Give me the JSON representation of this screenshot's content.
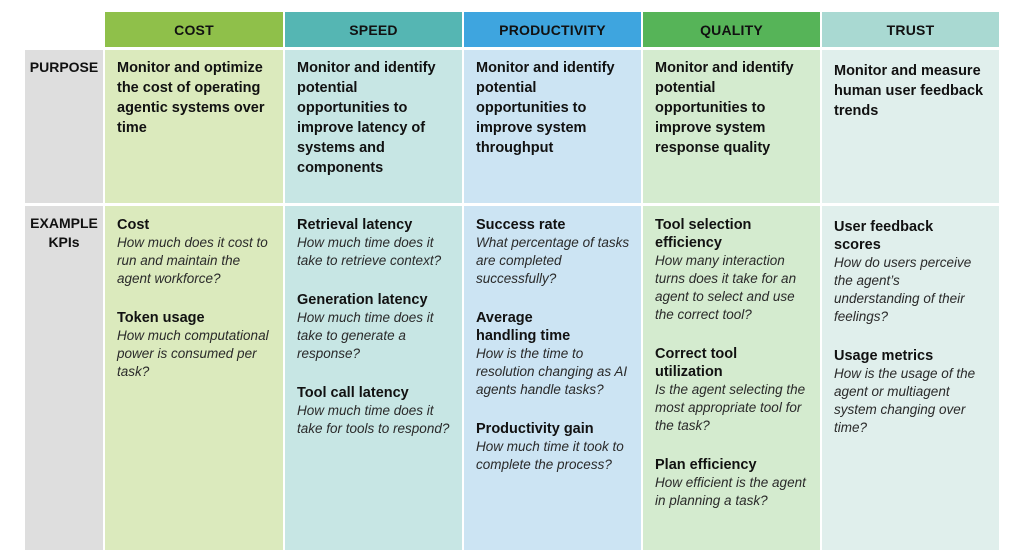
{
  "columns": [
    {
      "id": "cost",
      "header": "COST",
      "header_color": "#8fc04a",
      "cell_color": "#dbeabd"
    },
    {
      "id": "speed",
      "header": "SPEED",
      "header_color": "#55b6b3",
      "cell_color": "#c7e6e4"
    },
    {
      "id": "productivity",
      "header": "PRODUCTIVITY",
      "header_color": "#3ea5df",
      "cell_color": "#cce4f3"
    },
    {
      "id": "quality",
      "header": "QUALITY",
      "header_color": "#56b458",
      "cell_color": "#d4ebcf"
    },
    {
      "id": "trust",
      "header": "TRUST",
      "header_color": "#a9d9d2",
      "cell_color": "#e0efec"
    }
  ],
  "rows": {
    "purpose_label": "PURPOSE",
    "kpi_label_line1": "EXAMPLE",
    "kpi_label_line2": "KPIs"
  },
  "purpose": [
    "Monitor and optimize the cost of operating agentic systems over time",
    "Monitor and identify potential opportunities to improve latency of systems and components",
    "Monitor and identify potential opportunities to improve system throughput",
    "Monitor and identify potential opportunities to improve system response quality",
    "Monitor and measure human user feedback trends"
  ],
  "kpis": [
    [
      {
        "name": "Cost",
        "question": "How much does it cost to run and maintain the agent workforce?"
      },
      {
        "name": "Token usage",
        "question": "How much computational power is consumed per task?"
      }
    ],
    [
      {
        "name": "Retrieval latency",
        "question": "How much time does it take to retrieve context?"
      },
      {
        "name": "Generation latency",
        "question": "How much time does it take to generate a response?"
      },
      {
        "name": "Tool call latency",
        "question": "How much time does it take for tools to respond?"
      }
    ],
    [
      {
        "name": "Success rate",
        "question": "What percentage of tasks are completed successfully?"
      },
      {
        "name": "Average handling time",
        "question": "How is the time to resolution changing as AI agents handle tasks?"
      },
      {
        "name": "Productivity gain",
        "question": "How much time it took to complete the process?"
      }
    ],
    [
      {
        "name": "Tool selection efficiency",
        "question": "How many interaction turns does it take for an agent to select and use the correct tool?"
      },
      {
        "name": "Correct tool utilization",
        "question": "Is the agent selecting the most appropriate tool for the task?"
      },
      {
        "name": "Plan efficiency",
        "question": "How efficient is the agent in planning a task?"
      }
    ],
    [
      {
        "name": "User feedback scores",
        "question": "How do users perceive the agent’s understanding of their feelings?"
      },
      {
        "name": "Usage metrics",
        "question": "How is the usage of the agent or multiagent system changing over time?"
      }
    ]
  ]
}
